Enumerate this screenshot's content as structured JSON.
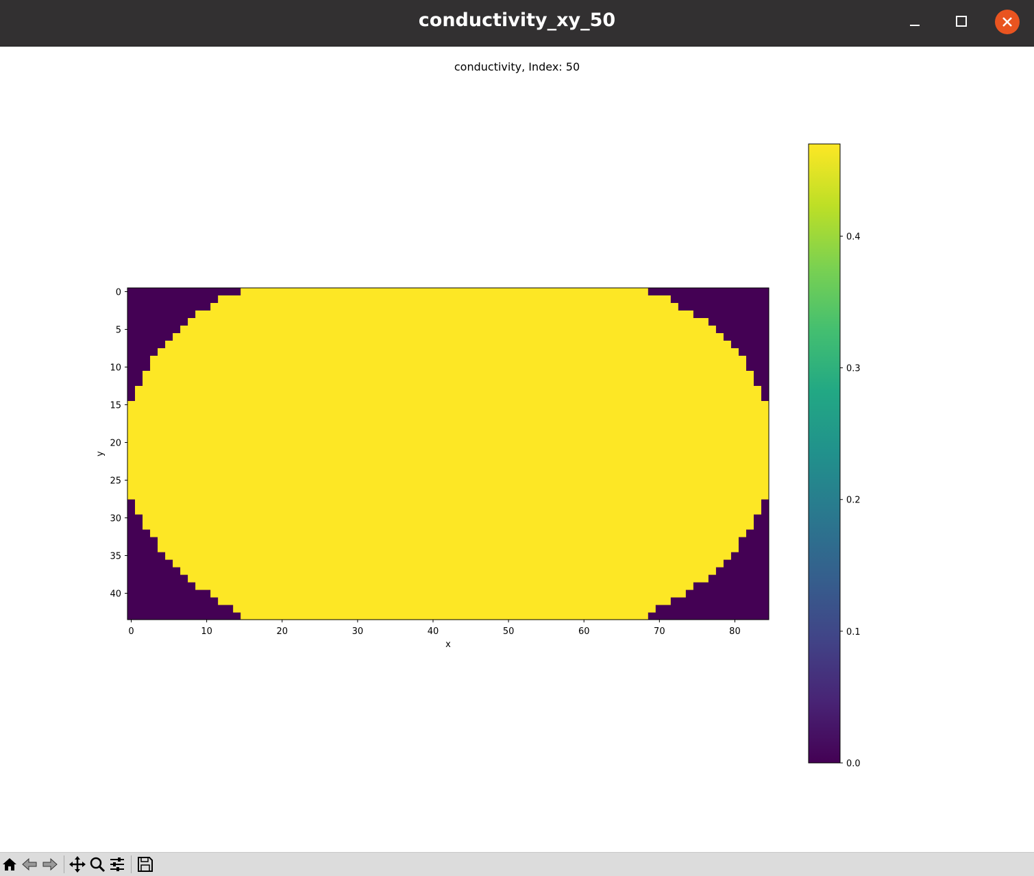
{
  "window": {
    "title": "conductivity_xy_50"
  },
  "icons": {
    "minimize": "minimize-icon",
    "maximize": "maximize-icon",
    "close": "close-icon",
    "toolbar": [
      "home-icon",
      "back-arrow-icon",
      "forward-arrow-icon",
      "pan-icon",
      "zoom-icon",
      "configure-subplots-icon",
      "save-icon"
    ]
  },
  "colors": {
    "titlebar": "#323031",
    "close_button": "#e95420",
    "viridis_low": "#440154",
    "viridis_high": "#fde725"
  },
  "chart_data": {
    "type": "heatmap",
    "title": "conductivity, Index: 50",
    "xlabel": "x",
    "ylabel": "y",
    "grid_shape": [
      44,
      85
    ],
    "xlim": [
      -0.5,
      84.5
    ],
    "ylim": [
      43.5,
      -0.5
    ],
    "xticks": [
      0,
      10,
      20,
      30,
      40,
      50,
      60,
      70,
      80
    ],
    "yticks": [
      0,
      5,
      10,
      15,
      20,
      25,
      30,
      35,
      40
    ],
    "value_inside_ellipse": 0.47,
    "value_outside_ellipse": 0.0,
    "row_fill_ranges": [
      [
        15,
        69
      ],
      [
        12,
        72
      ],
      [
        11,
        73
      ],
      [
        9,
        75
      ],
      [
        8,
        77
      ],
      [
        7,
        78
      ],
      [
        6,
        79
      ],
      [
        5,
        80
      ],
      [
        4,
        81
      ],
      [
        3,
        82
      ],
      [
        3,
        82
      ],
      [
        2,
        83
      ],
      [
        2,
        83
      ],
      [
        1,
        84
      ],
      [
        1,
        84
      ],
      [
        0,
        85
      ],
      [
        0,
        85
      ],
      [
        0,
        85
      ],
      [
        0,
        85
      ],
      [
        0,
        85
      ],
      [
        0,
        85
      ],
      [
        0,
        85
      ],
      [
        0,
        85
      ],
      [
        0,
        85
      ],
      [
        0,
        85
      ],
      [
        0,
        85
      ],
      [
        0,
        85
      ],
      [
        0,
        85
      ],
      [
        1,
        84
      ],
      [
        1,
        84
      ],
      [
        2,
        83
      ],
      [
        2,
        83
      ],
      [
        3,
        82
      ],
      [
        4,
        81
      ],
      [
        4,
        81
      ],
      [
        5,
        80
      ],
      [
        6,
        79
      ],
      [
        7,
        78
      ],
      [
        8,
        77
      ],
      [
        9,
        75
      ],
      [
        11,
        74
      ],
      [
        12,
        72
      ],
      [
        14,
        70
      ],
      [
        15,
        69
      ]
    ],
    "colorbar": {
      "cmap": "viridis",
      "vmin": 0.0,
      "vmax": 0.47,
      "ticks": [
        0.0,
        0.1,
        0.2,
        0.3,
        0.4
      ],
      "tick_labels": [
        "0.0",
        "0.1",
        "0.2",
        "0.3",
        "0.4"
      ]
    }
  }
}
